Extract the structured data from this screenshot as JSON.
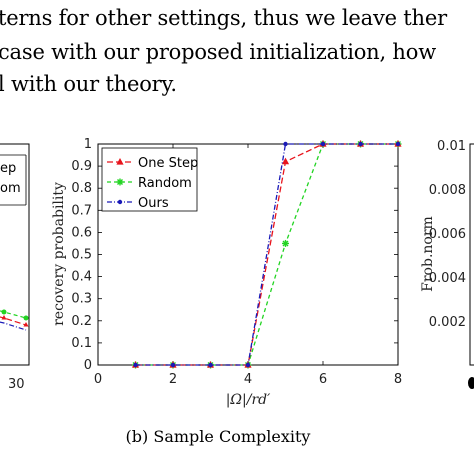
{
  "paper_text": {
    "line1": "terns for other settings, thus we leave ther",
    "line2": "case with our proposed initialization, how",
    "line3": "l with our theory."
  },
  "left_panel": {
    "legend_partial": [
      "ep",
      "om"
    ],
    "tick_partial": "30"
  },
  "right_panel": {
    "ylabel": "Frob.norm",
    "ticks_partial": [
      "0.01",
      "0.008",
      "0.006",
      "0.004",
      "0.002"
    ]
  },
  "caption": "(b) Sample Complexity",
  "chart_data": {
    "type": "line",
    "xlabel": "|Ω|/rd′",
    "ylabel": "recovery probability",
    "xlim": [
      0,
      8
    ],
    "ylim": [
      0,
      1
    ],
    "xticks": [
      "0",
      "2",
      "4",
      "6",
      "8"
    ],
    "yticks": [
      "0",
      "0.1",
      "0.2",
      "0.3",
      "0.4",
      "0.5",
      "0.6",
      "0.7",
      "0.8",
      "0.9",
      "1"
    ],
    "legend_position": "top-left",
    "grid": false,
    "series": [
      {
        "name": "One Step",
        "color": "#e8141c",
        "dash": "6,3",
        "marker": "triangle",
        "x": [
          1,
          2,
          3,
          4,
          5,
          6,
          7,
          8
        ],
        "y": [
          0,
          0,
          0,
          0,
          0.92,
          1,
          1,
          1
        ]
      },
      {
        "name": "Random",
        "color": "#22d422",
        "dash": "4,3",
        "marker": "star",
        "x": [
          1,
          2,
          3,
          4,
          5,
          6,
          7,
          8
        ],
        "y": [
          0,
          0,
          0,
          0,
          0.55,
          1,
          1,
          1
        ]
      },
      {
        "name": "Ours",
        "color": "#1a1ab8",
        "dash": "5,2,1,2",
        "marker": "dot",
        "x": [
          1,
          2,
          3,
          4,
          5,
          6,
          7,
          8
        ],
        "y": [
          0,
          0,
          0,
          0,
          1,
          1,
          1,
          1
        ]
      }
    ]
  }
}
